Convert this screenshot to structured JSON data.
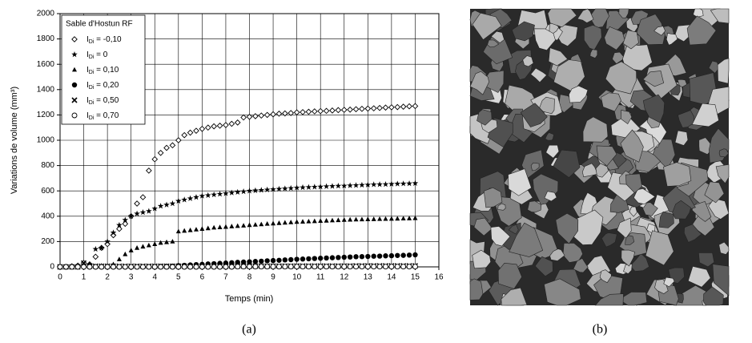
{
  "chart_data": {
    "type": "scatter",
    "y_label": "Variations de volume (mm³)",
    "x_label": "Temps (min)",
    "legend_title": "Sable d'Hostun RF",
    "legend": "upper left",
    "grid": true,
    "xlim": [
      0,
      16
    ],
    "xticks": [
      0,
      1,
      2,
      3,
      4,
      5,
      6,
      7,
      8,
      9,
      10,
      11,
      12,
      13,
      14,
      15,
      16
    ],
    "ylim": [
      0,
      2000
    ],
    "yticks": [
      0,
      200,
      400,
      600,
      800,
      1000,
      1200,
      1400,
      1600,
      1800,
      2000
    ],
    "x": [
      0,
      0.25,
      0.5,
      0.75,
      1,
      1.25,
      1.5,
      1.75,
      2,
      2.25,
      2.5,
      2.75,
      3,
      3.25,
      3.5,
      3.75,
      4,
      4.25,
      4.5,
      4.75,
      5,
      5.25,
      5.5,
      5.75,
      6,
      6.25,
      6.5,
      6.75,
      7,
      7.25,
      7.5,
      7.75,
      8,
      8.25,
      8.5,
      8.75,
      9,
      9.25,
      9.5,
      9.75,
      10,
      10.25,
      10.5,
      10.75,
      11,
      11.25,
      11.5,
      11.75,
      12,
      12.25,
      12.5,
      12.75,
      13,
      13.25,
      13.5,
      13.75,
      14,
      14.25,
      14.5,
      14.75,
      15
    ],
    "series": [
      {
        "name": "IDi = -0,10",
        "marker": "diamond",
        "color": "#000",
        "values": [
          0,
          0,
          5,
          10,
          30,
          20,
          80,
          150,
          180,
          250,
          300,
          340,
          400,
          500,
          550,
          760,
          850,
          900,
          940,
          960,
          1000,
          1040,
          1060,
          1075,
          1090,
          1100,
          1110,
          1115,
          1120,
          1130,
          1140,
          1180,
          1185,
          1190,
          1195,
          1200,
          1205,
          1210,
          1212,
          1215,
          1220,
          1222,
          1225,
          1228,
          1230,
          1232,
          1235,
          1238,
          1240,
          1242,
          1245,
          1248,
          1250,
          1252,
          1255,
          1258,
          1260,
          1262,
          1265,
          1268,
          1270
        ]
      },
      {
        "name": "IDi = 0",
        "marker": "star",
        "color": "#000",
        "values": [
          0,
          0,
          0,
          5,
          10,
          20,
          140,
          150,
          200,
          270,
          330,
          370,
          400,
          420,
          430,
          440,
          460,
          480,
          490,
          500,
          520,
          530,
          540,
          550,
          560,
          565,
          570,
          575,
          580,
          585,
          590,
          595,
          600,
          603,
          606,
          609,
          612,
          615,
          618,
          621,
          625,
          627,
          629,
          631,
          633,
          635,
          637,
          639,
          640,
          642,
          644,
          646,
          648,
          650,
          651,
          652,
          654,
          656,
          657,
          658,
          660
        ]
      },
      {
        "name": "IDi = 0,10",
        "marker": "triangle",
        "color": "#000",
        "values": [
          0,
          0,
          0,
          0,
          5,
          5,
          5,
          10,
          10,
          20,
          60,
          100,
          130,
          150,
          160,
          170,
          180,
          190,
          195,
          200,
          280,
          285,
          290,
          295,
          300,
          305,
          310,
          313,
          316,
          320,
          323,
          326,
          330,
          333,
          336,
          340,
          343,
          346,
          349,
          352,
          355,
          357,
          359,
          361,
          363,
          365,
          367,
          369,
          371,
          373,
          374,
          375,
          376,
          377,
          378,
          379,
          380,
          381,
          382,
          383,
          385
        ]
      },
      {
        "name": "IDi = 0,20",
        "marker": "circle",
        "color": "#000",
        "values": [
          0,
          0,
          0,
          0,
          0,
          0,
          0,
          0,
          0,
          0,
          0,
          0,
          0,
          2,
          2,
          3,
          3,
          4,
          5,
          6,
          10,
          12,
          15,
          18,
          20,
          23,
          25,
          28,
          30,
          33,
          36,
          38,
          40,
          43,
          45,
          48,
          50,
          52,
          55,
          57,
          60,
          62,
          64,
          66,
          68,
          70,
          72,
          74,
          76,
          78,
          80,
          81,
          82,
          84,
          85,
          87,
          88,
          90,
          91,
          93,
          95
        ]
      },
      {
        "name": "IDi = 0,50",
        "marker": "cross",
        "color": "#000",
        "values": [
          0,
          0,
          0,
          0,
          30,
          5,
          5,
          5,
          5,
          5,
          5,
          5,
          5,
          5,
          5,
          5,
          5,
          5,
          5,
          5,
          5,
          5,
          5,
          5,
          5,
          5,
          5,
          5,
          5,
          5,
          6,
          6,
          6,
          6,
          6,
          6,
          6,
          6,
          6,
          6,
          7,
          7,
          7,
          7,
          7,
          7,
          7,
          7,
          7,
          7,
          8,
          8,
          8,
          8,
          8,
          8,
          8,
          8,
          8,
          8,
          8
        ]
      },
      {
        "name": "IDi = 0,70",
        "marker": "open-circle",
        "color": "#000",
        "values": [
          0,
          0,
          0,
          0,
          0,
          0,
          0,
          0,
          0,
          0,
          0,
          0,
          0,
          0,
          0,
          0,
          0,
          0,
          0,
          0,
          0,
          0,
          0,
          0,
          0,
          0,
          0,
          0,
          0,
          0,
          2,
          2,
          2,
          2,
          2,
          2,
          2,
          2,
          2,
          2,
          2,
          2,
          2,
          2,
          2,
          2,
          2,
          2,
          2,
          2,
          2,
          2,
          2,
          2,
          2,
          2,
          2,
          2,
          2,
          2,
          2
        ]
      }
    ]
  },
  "captions": [
    "(a)",
    "(b)"
  ]
}
